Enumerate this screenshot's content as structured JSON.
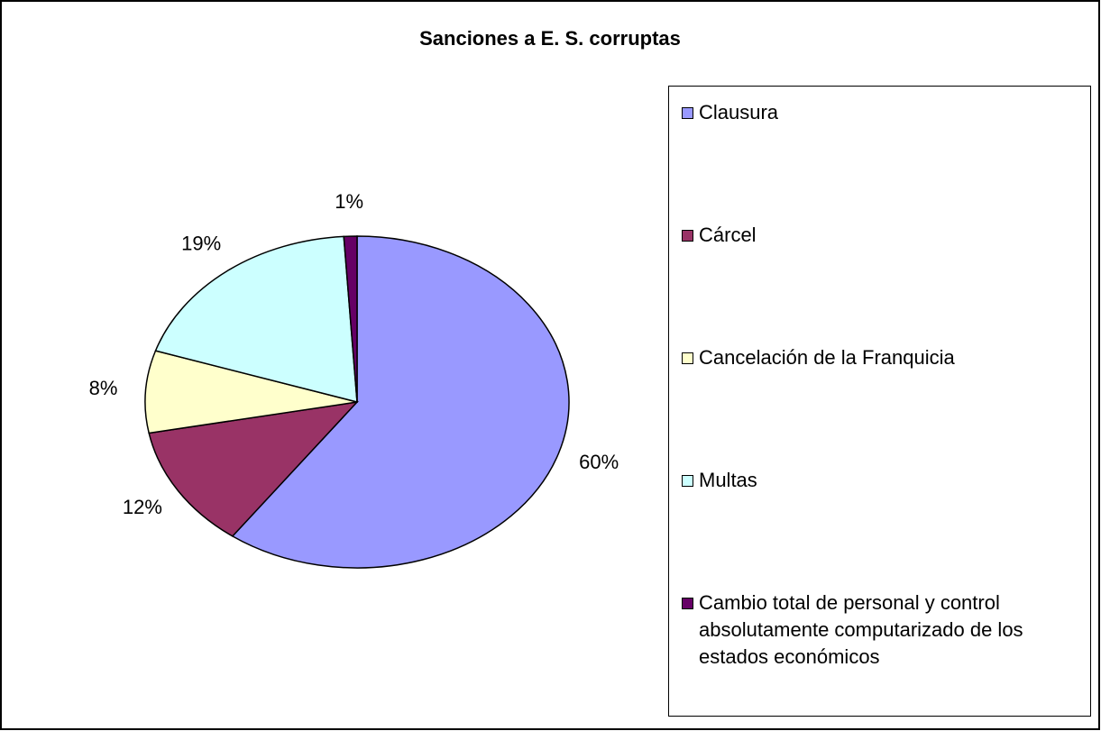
{
  "chart_data": {
    "type": "pie",
    "title": "Sanciones a E. S. corruptas",
    "categories": [
      "Clausura",
      "Cárcel",
      "Cancelación de la Franquicia",
      "Multas",
      "Cambio total de personal y control absolutamente computarizado de los estados económicos"
    ],
    "values": [
      60,
      12,
      8,
      19,
      1
    ],
    "value_labels": [
      "60%",
      "12%",
      "8%",
      "19%",
      "1%"
    ],
    "colors": [
      "#9999ff",
      "#993366",
      "#ffffcc",
      "#ccffff",
      "#660066"
    ],
    "legend": "right"
  }
}
